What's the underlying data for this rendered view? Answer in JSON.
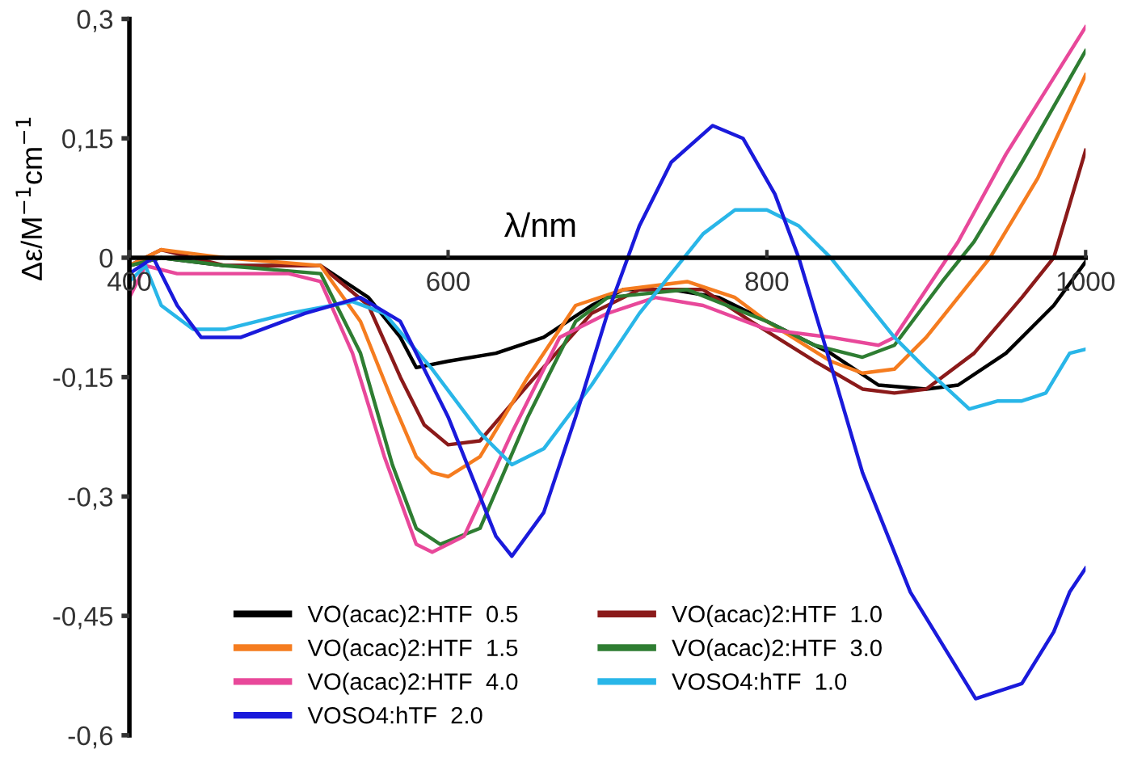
{
  "chart_data": {
    "type": "line",
    "xlabel": "λ/nm",
    "ylabel": "Δε/M$^{−1}$cm$^{−1}$",
    "xlim": [
      400,
      1000
    ],
    "ylim": [
      -0.6,
      0.3
    ],
    "xticks": [
      400,
      600,
      800,
      1000
    ],
    "yticks": [
      {
        "value": 0.3,
        "label": "0,3"
      },
      {
        "value": 0.15,
        "label": "0,15"
      },
      0,
      {
        "value": -0.15,
        "label": "-0,15"
      },
      {
        "value": -0.3,
        "label": "-0,3"
      },
      {
        "value": -0.45,
        "label": "-0,45"
      },
      {
        "value": -0.6,
        "label": "-0,6"
      }
    ],
    "grid": false,
    "legend": "bottom",
    "marker": "none",
    "line_style": "solid",
    "series": [
      {
        "name": "VO(acac)2:HTF  0.5",
        "color": "#000000",
        "x": [
          400,
          420,
          460,
          520,
          550,
          570,
          580,
          600,
          630,
          660,
          690,
          710,
          740,
          770,
          790,
          810,
          840,
          870,
          900,
          920,
          950,
          980,
          1000
        ],
        "values": [
          -0.01,
          0.0,
          -0.01,
          -0.01,
          -0.05,
          -0.1,
          -0.138,
          -0.13,
          -0.12,
          -0.1,
          -0.06,
          -0.04,
          -0.04,
          -0.05,
          -0.07,
          -0.09,
          -0.12,
          -0.16,
          -0.165,
          -0.16,
          -0.12,
          -0.06,
          -0.005
        ]
      },
      {
        "name": "VO(acac)2:HTF  1.0",
        "color": "#8b1a1a",
        "x": [
          400,
          420,
          460,
          520,
          550,
          570,
          585,
          600,
          620,
          650,
          690,
          720,
          760,
          790,
          830,
          860,
          880,
          900,
          930,
          960,
          980,
          1000
        ],
        "values": [
          -0.01,
          0.01,
          -0.01,
          -0.01,
          -0.06,
          -0.15,
          -0.21,
          -0.235,
          -0.23,
          -0.16,
          -0.07,
          -0.04,
          -0.04,
          -0.08,
          -0.13,
          -0.165,
          -0.17,
          -0.165,
          -0.12,
          -0.05,
          0.0,
          0.135
        ]
      },
      {
        "name": "VO(acac)2:HTF  1.5",
        "color": "#f57c1f",
        "x": [
          400,
          420,
          460,
          520,
          545,
          565,
          580,
          590,
          600,
          620,
          650,
          680,
          710,
          750,
          780,
          800,
          840,
          860,
          880,
          900,
          920,
          940,
          970,
          1000
        ],
        "values": [
          -0.01,
          0.01,
          0.0,
          -0.01,
          -0.08,
          -0.18,
          -0.25,
          -0.27,
          -0.275,
          -0.25,
          -0.15,
          -0.06,
          -0.04,
          -0.03,
          -0.05,
          -0.08,
          -0.13,
          -0.145,
          -0.14,
          -0.1,
          -0.05,
          0.0,
          0.1,
          0.23
        ]
      },
      {
        "name": "VO(acac)2:HTF  3.0",
        "color": "#2e7d32",
        "x": [
          400,
          420,
          460,
          520,
          545,
          565,
          580,
          595,
          620,
          650,
          680,
          700,
          750,
          800,
          830,
          860,
          880,
          910,
          930,
          960,
          1000
        ],
        "values": [
          -0.01,
          0.0,
          -0.01,
          -0.02,
          -0.12,
          -0.26,
          -0.34,
          -0.36,
          -0.34,
          -0.2,
          -0.08,
          -0.05,
          -0.04,
          -0.08,
          -0.11,
          -0.125,
          -0.11,
          -0.03,
          0.02,
          0.12,
          0.26
        ]
      },
      {
        "name": "VO(acac)2:HTF  4.0",
        "color": "#e8489a",
        "x": [
          400,
          410,
          430,
          500,
          520,
          540,
          560,
          580,
          590,
          610,
          640,
          670,
          700,
          730,
          760,
          800,
          840,
          870,
          880,
          900,
          920,
          950,
          1000
        ],
        "values": [
          -0.05,
          -0.01,
          -0.02,
          -0.02,
          -0.03,
          -0.12,
          -0.25,
          -0.36,
          -0.37,
          -0.35,
          -0.22,
          -0.1,
          -0.07,
          -0.05,
          -0.06,
          -0.09,
          -0.1,
          -0.11,
          -0.1,
          -0.04,
          0.02,
          0.13,
          0.29
        ]
      },
      {
        "name": "VOSO4:hTF  1.0",
        "color": "#29b6e8",
        "x": [
          400,
          410,
          420,
          440,
          460,
          500,
          540,
          560,
          590,
          620,
          640,
          660,
          690,
          720,
          740,
          760,
          780,
          800,
          820,
          840,
          860,
          880,
          900,
          927,
          945,
          960,
          975,
          990,
          1000
        ],
        "values": [
          -0.03,
          -0.01,
          -0.06,
          -0.09,
          -0.09,
          -0.07,
          -0.055,
          -0.07,
          -0.14,
          -0.22,
          -0.26,
          -0.24,
          -0.16,
          -0.07,
          -0.02,
          0.03,
          0.06,
          0.06,
          0.04,
          0.0,
          -0.05,
          -0.1,
          -0.14,
          -0.19,
          -0.18,
          -0.18,
          -0.17,
          -0.12,
          -0.115
        ]
      },
      {
        "name": "VOSO4:hTF  2.0",
        "color": "#1a1adb",
        "x": [
          400,
          415,
          430,
          445,
          470,
          510,
          545,
          570,
          600,
          630,
          640,
          660,
          680,
          700,
          720,
          740,
          766,
          785,
          805,
          820,
          835,
          860,
          890,
          931,
          960,
          980,
          990,
          1000
        ],
        "values": [
          -0.02,
          0.0,
          -0.06,
          -0.1,
          -0.1,
          -0.07,
          -0.05,
          -0.08,
          -0.2,
          -0.35,
          -0.375,
          -0.32,
          -0.2,
          -0.07,
          0.04,
          0.12,
          0.166,
          0.15,
          0.08,
          0.0,
          -0.1,
          -0.27,
          -0.42,
          -0.554,
          -0.535,
          -0.47,
          -0.42,
          -0.39
        ]
      }
    ]
  }
}
